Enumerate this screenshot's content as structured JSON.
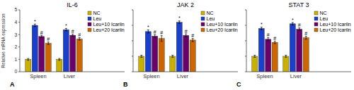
{
  "chart_data": [
    {
      "type": "bar",
      "title": "IL-6",
      "ylabel": "Relative mRNA expression",
      "annotations": [
        "A"
      ],
      "categories": [
        "Spleen",
        "Liver"
      ],
      "series": [
        {
          "name": "NC",
          "color": "#c8b000",
          "values": [
            1.0,
            1.0
          ],
          "errors": [
            0.07,
            0.07
          ]
        },
        {
          "name": "Leu",
          "color": "#1a3fcc",
          "values": [
            3.75,
            3.4
          ],
          "errors": [
            0.1,
            0.1
          ],
          "annotation": "*"
        },
        {
          "name": "Leu+10 Icariin",
          "color": "#6b006b",
          "values": [
            2.85,
            2.95
          ],
          "errors": [
            0.1,
            0.1
          ],
          "annotation": "#"
        },
        {
          "name": "Leu+20 Icariin",
          "color": "#cc6600",
          "values": [
            2.3,
            2.65
          ],
          "errors": [
            0.1,
            0.1
          ],
          "annotation": "#"
        }
      ],
      "ylim": [
        0,
        5
      ],
      "yticks": [
        0,
        1,
        2,
        3,
        4,
        5
      ],
      "grid": false,
      "legend": "upper right"
    },
    {
      "type": "bar",
      "title": "JAK 2",
      "annotations": [
        "B"
      ],
      "categories": [
        "Spleen",
        "Liver"
      ],
      "series": [
        {
          "name": "NC",
          "color": "#c8b000",
          "values": [
            1.0,
            1.0
          ],
          "errors": [
            0.07,
            0.07
          ]
        },
        {
          "name": "Leu",
          "color": "#1a3fcc",
          "values": [
            2.6,
            3.2
          ],
          "errors": [
            0.1,
            0.08
          ],
          "annotation": "*"
        },
        {
          "name": "Leu+10 Icariin",
          "color": "#6b006b",
          "values": [
            2.3,
            2.35
          ],
          "errors": [
            0.1,
            0.1
          ],
          "annotation": "#"
        },
        {
          "name": "Leu+20 Icariin",
          "color": "#cc6600",
          "values": [
            2.15,
            2.05
          ],
          "errors": [
            0.18,
            0.1
          ],
          "annotation": "#"
        }
      ],
      "ylim": [
        0,
        4
      ],
      "yticks": [
        0,
        1,
        2,
        3,
        4
      ],
      "grid": false,
      "legend": "upper right",
      "tick_labels": "x"
    },
    {
      "type": "bar",
      "title": "STAT 3",
      "annotations": [
        "C"
      ],
      "categories": [
        "Spleen",
        "Liver"
      ],
      "series": [
        {
          "name": "NC",
          "color": "#c8b000",
          "values": [
            1.0,
            1.0
          ],
          "errors": [
            0.07,
            0.07
          ]
        },
        {
          "name": "Leu",
          "color": "#1a3fcc",
          "values": [
            2.8,
            3.1
          ],
          "errors": [
            0.08,
            0.08
          ],
          "annotation": "*"
        },
        {
          "name": "Leu+10 Icariin",
          "color": "#6b006b",
          "values": [
            2.1,
            2.75
          ],
          "errors": [
            0.1,
            0.08
          ],
          "annotation": "#"
        },
        {
          "name": "Leu+20 Icariin",
          "color": "#cc6600",
          "values": [
            1.9,
            2.2
          ],
          "errors": [
            0.08,
            0.1
          ],
          "annotation": "#"
        }
      ],
      "ylim": [
        0,
        4
      ],
      "yticks": [
        0,
        1,
        2,
        3,
        4
      ],
      "grid": false,
      "legend": "upper right",
      "tick_labels": "x"
    }
  ]
}
